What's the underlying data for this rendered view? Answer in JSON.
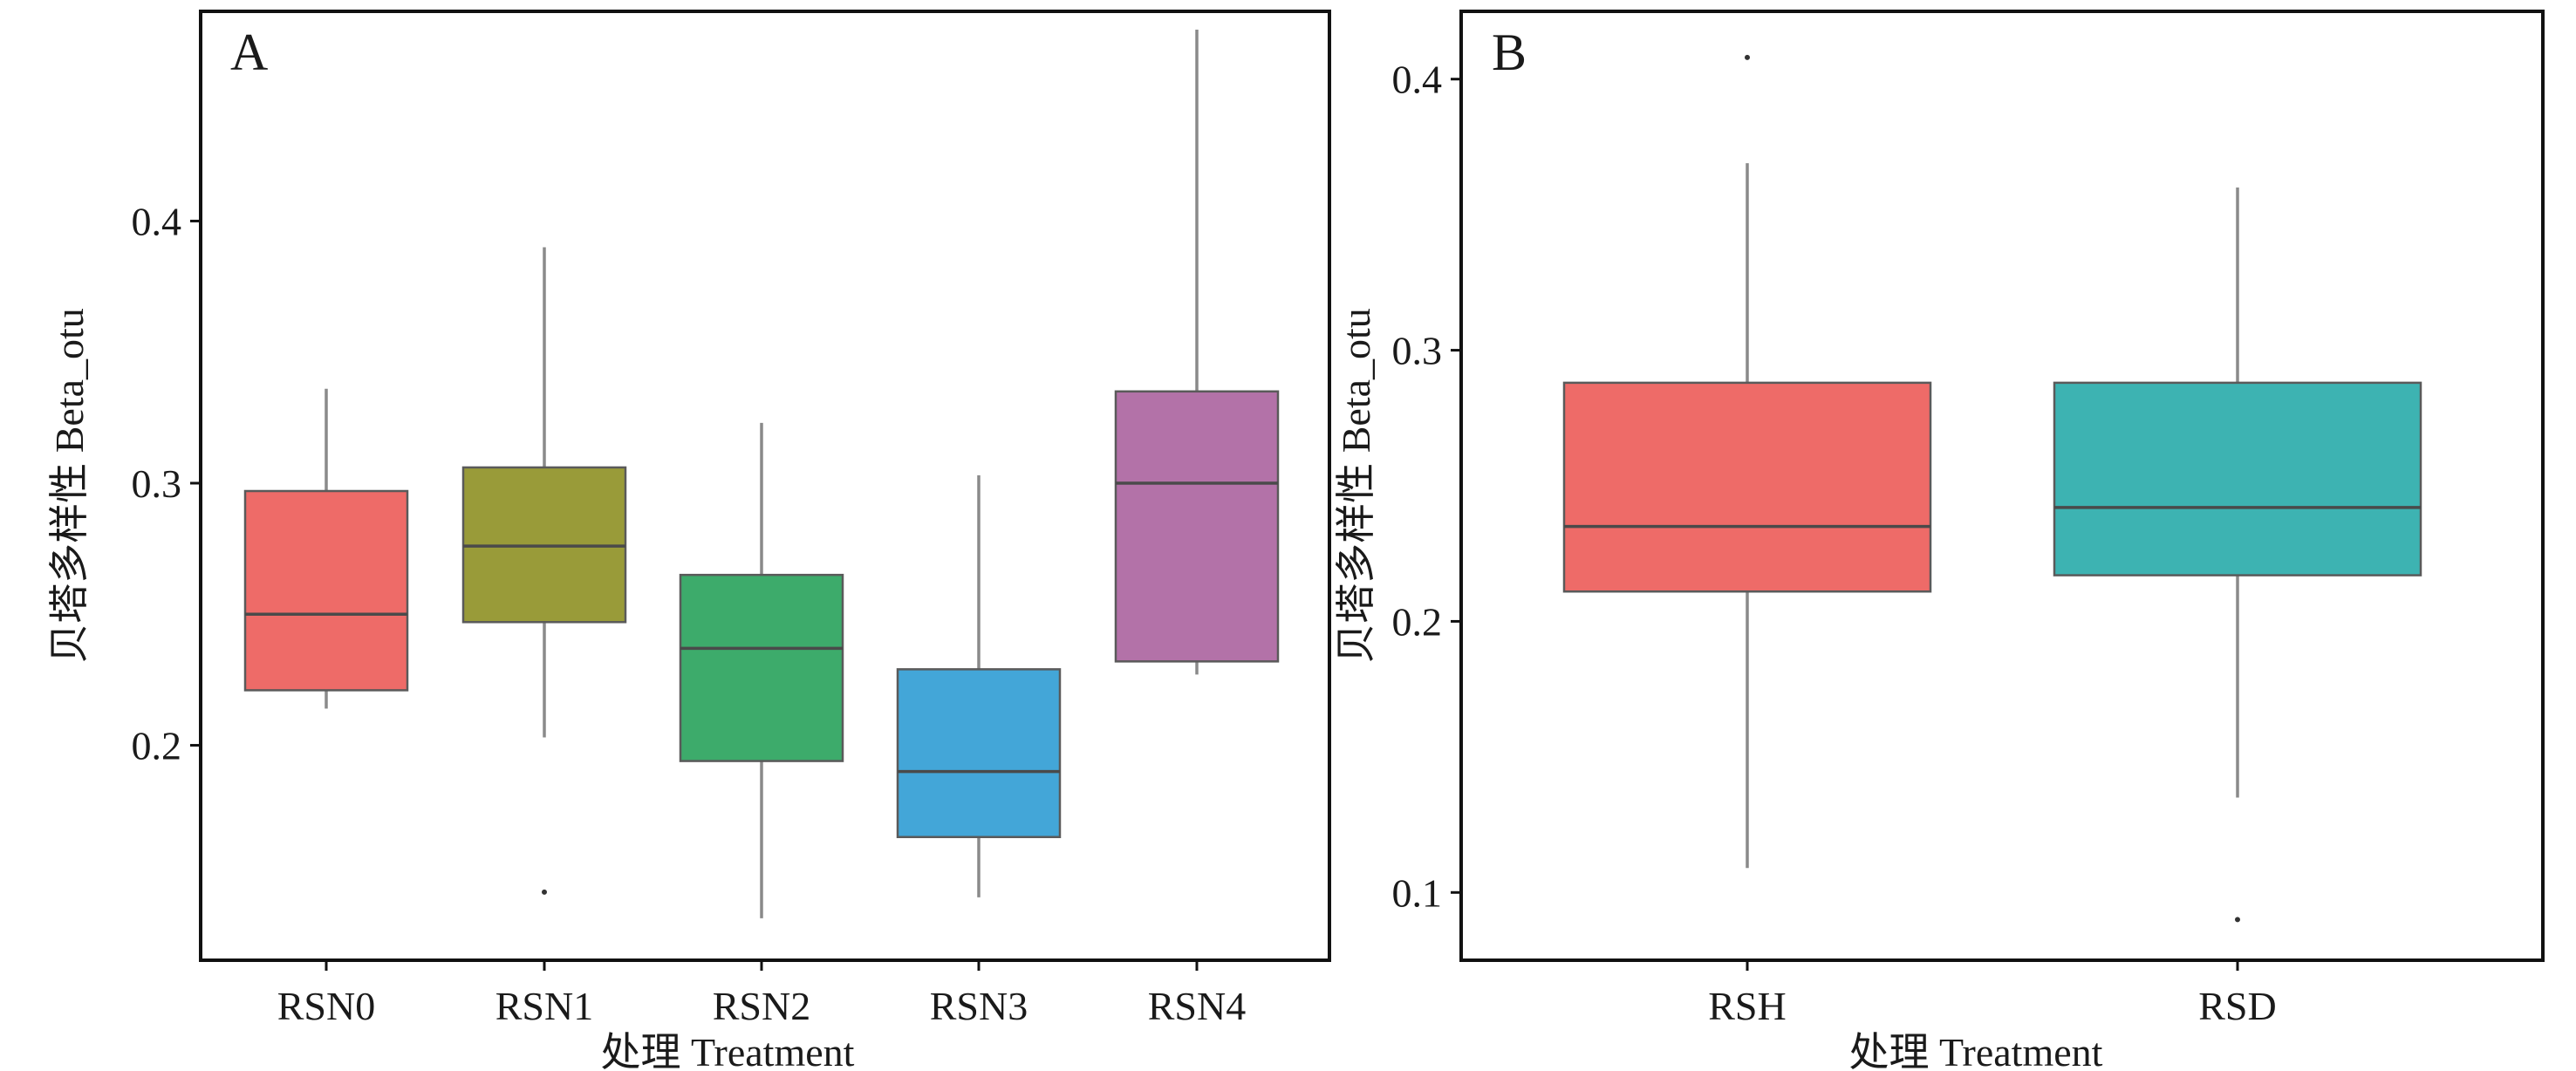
{
  "chart_data": [
    {
      "type": "box",
      "panel_label": "A",
      "xlabel": "处理 Treatment",
      "ylabel": "贝塔多样性 Beta_otu",
      "ylim": [
        0.118,
        0.48
      ],
      "yticks": [
        0.2,
        0.3,
        0.4
      ],
      "ytick_labels": [
        "0.2",
        "0.3",
        "0.4"
      ],
      "categories": [
        "RSN0",
        "RSN1",
        "RSN2",
        "RSN3",
        "RSN4"
      ],
      "colors": [
        "#EE6B68",
        "#999B39",
        "#3DAB6B",
        "#43A6D8",
        "#B372A8"
      ],
      "boxes": [
        {
          "category": "RSN0",
          "whisker_low": 0.214,
          "q1": 0.221,
          "median": 0.25,
          "q3": 0.297,
          "whisker_high": 0.336,
          "outliers": []
        },
        {
          "category": "RSN1",
          "whisker_low": 0.203,
          "q1": 0.247,
          "median": 0.276,
          "q3": 0.306,
          "whisker_high": 0.39,
          "outliers": [
            0.144
          ]
        },
        {
          "category": "RSN2",
          "whisker_low": 0.134,
          "q1": 0.194,
          "median": 0.237,
          "q3": 0.265,
          "whisker_high": 0.323,
          "outliers": []
        },
        {
          "category": "RSN3",
          "whisker_low": 0.142,
          "q1": 0.165,
          "median": 0.19,
          "q3": 0.229,
          "whisker_high": 0.303,
          "outliers": []
        },
        {
          "category": "RSN4",
          "whisker_low": 0.227,
          "q1": 0.232,
          "median": 0.3,
          "q3": 0.335,
          "whisker_high": 0.473,
          "outliers": []
        }
      ],
      "grid": false,
      "legend": "none"
    },
    {
      "type": "box",
      "panel_label": "B",
      "xlabel": "处理 Treatment",
      "ylabel": "贝塔多样性 Beta_otu",
      "ylim": [
        0.075,
        0.425
      ],
      "yticks": [
        0.1,
        0.2,
        0.3,
        0.4
      ],
      "ytick_labels": [
        "0.1",
        "0.2",
        "0.3",
        "0.4"
      ],
      "categories": [
        "RSH",
        "RSD"
      ],
      "colors": [
        "#EE6B68",
        "#3DB3B2"
      ],
      "boxes": [
        {
          "category": "RSH",
          "whisker_low": 0.109,
          "q1": 0.211,
          "median": 0.235,
          "q3": 0.288,
          "whisker_high": 0.369,
          "outliers": [
            0.408
          ]
        },
        {
          "category": "RSD",
          "whisker_low": 0.135,
          "q1": 0.217,
          "median": 0.242,
          "q3": 0.288,
          "whisker_high": 0.36,
          "outliers": [
            0.09
          ]
        }
      ],
      "grid": false,
      "legend": "none"
    }
  ]
}
